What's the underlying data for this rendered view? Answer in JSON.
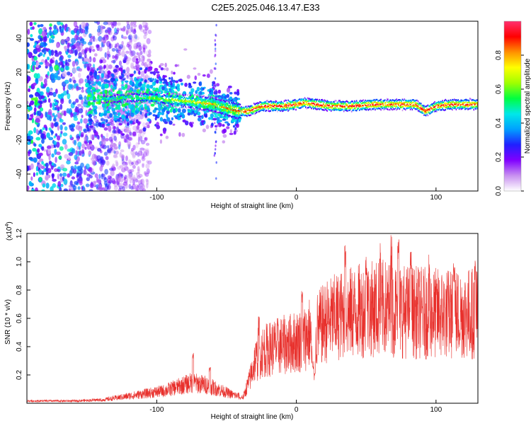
{
  "figure": {
    "title": "C2E5.2025.046.13.47.E33"
  },
  "chart_data": [
    {
      "type": "heatmap",
      "xlabel": "Height of straight line (km)",
      "ylabel": "Frequency (Hz)",
      "xlim": [
        -193,
        130
      ],
      "ylim": [
        -50,
        50
      ],
      "x_ticks": [
        "-100",
        "0",
        "100"
      ],
      "x_tick_values": [
        -100,
        0,
        100
      ],
      "y_ticks": [
        "-40",
        "-20",
        "0",
        "20",
        "40"
      ],
      "y_tick_values": [
        -40,
        -20,
        0,
        20,
        40
      ],
      "colorbar": {
        "label": "Normalized spectral amplitude",
        "range": [
          0.0,
          1.0
        ],
        "ticks": [
          "0.0",
          "0.2",
          "0.4",
          "0.6",
          "0.8"
        ],
        "tick_values": [
          0.0,
          0.2,
          0.4,
          0.6,
          0.8
        ],
        "colormap": [
          "#ffffff",
          "#c890f0",
          "#8000ff",
          "#2020ff",
          "#00a0ff",
          "#00e8e8",
          "#00ff40",
          "#a0ff00",
          "#ffff00",
          "#ff9000",
          "#ff0000",
          "#ff3070"
        ]
      },
      "ridge": {
        "name": "",
        "points": [
          [
            -135,
            4
          ],
          [
            -120,
            5
          ],
          [
            -105,
            5
          ],
          [
            -95,
            4
          ],
          [
            -80,
            3
          ],
          [
            -70,
            2
          ],
          [
            -60,
            1
          ],
          [
            -52,
            -1
          ],
          [
            -42,
            -3
          ],
          [
            -35,
            -3
          ],
          [
            -25,
            0
          ],
          [
            -10,
            0
          ],
          [
            0,
            1
          ],
          [
            5,
            2
          ],
          [
            15,
            1
          ],
          [
            25,
            0
          ],
          [
            40,
            0
          ],
          [
            55,
            1
          ],
          [
            70,
            1
          ],
          [
            85,
            1
          ],
          [
            92,
            -3
          ],
          [
            100,
            0
          ],
          [
            110,
            1
          ],
          [
            120,
            1
          ],
          [
            130,
            1
          ]
        ],
        "peak_amplitude": 1.0
      },
      "noise_region": {
        "x_range": [
          -193,
          -130
        ],
        "freq_range": [
          -50,
          50
        ],
        "amplitude": 0.2
      },
      "grid": false
    },
    {
      "type": "line",
      "xlabel": "Height of straight line (km)",
      "ylabel": "SNR (10 * v/v)",
      "y_multiplier_label": "(x10",
      "y_multiplier_exponent": "4",
      "y_multiplier_suffix": ")",
      "xlim": [
        -193,
        130
      ],
      "ylim": [
        0,
        1.2
      ],
      "x_ticks": [
        "-100",
        "0",
        "100"
      ],
      "x_tick_values": [
        -100,
        0,
        100
      ],
      "y_ticks": [
        "0.2",
        "0.4",
        "0.6",
        "0.8",
        "1.0",
        "1.2"
      ],
      "y_tick_values": [
        0.2,
        0.4,
        0.6,
        0.8,
        1.0,
        1.2
      ],
      "series": [
        {
          "color": "#e8302c",
          "envelope": [
            [
              -193,
              0.02
            ],
            [
              -160,
              0.02
            ],
            [
              -140,
              0.03
            ],
            [
              -125,
              0.06
            ],
            [
              -110,
              0.09
            ],
            [
              -95,
              0.12
            ],
            [
              -85,
              0.16
            ],
            [
              -75,
              0.2
            ],
            [
              -65,
              0.18
            ],
            [
              -55,
              0.13
            ],
            [
              -45,
              0.08
            ],
            [
              -38,
              0.06
            ],
            [
              -33,
              0.25
            ],
            [
              -30,
              0.4
            ],
            [
              -25,
              0.5
            ],
            [
              -15,
              0.55
            ],
            [
              -5,
              0.58
            ],
            [
              5,
              0.62
            ],
            [
              10,
              0.7
            ],
            [
              12,
              0.25
            ],
            [
              15,
              0.72
            ],
            [
              22,
              0.8
            ],
            [
              30,
              0.85
            ],
            [
              45,
              0.9
            ],
            [
              60,
              0.93
            ],
            [
              75,
              0.9
            ],
            [
              90,
              0.88
            ],
            [
              110,
              0.87
            ],
            [
              130,
              0.88
            ]
          ],
          "spikes": [
            [
              -74,
              0.36
            ],
            [
              -62,
              0.26
            ],
            [
              -27,
              0.62
            ],
            [
              4,
              0.8
            ],
            [
              35,
              1.12
            ],
            [
              50,
              1.05
            ],
            [
              60,
              1.17
            ],
            [
              68,
              1.21
            ],
            [
              73,
              1.19
            ],
            [
              82,
              1.08
            ],
            [
              95,
              1.05
            ],
            [
              113,
              1.0
            ],
            [
              128,
              1.02
            ]
          ],
          "dips": [
            [
              -40,
              0.04
            ],
            [
              13,
              0.21
            ],
            [
              58,
              0.6
            ]
          ]
        }
      ],
      "grid": false
    }
  ]
}
